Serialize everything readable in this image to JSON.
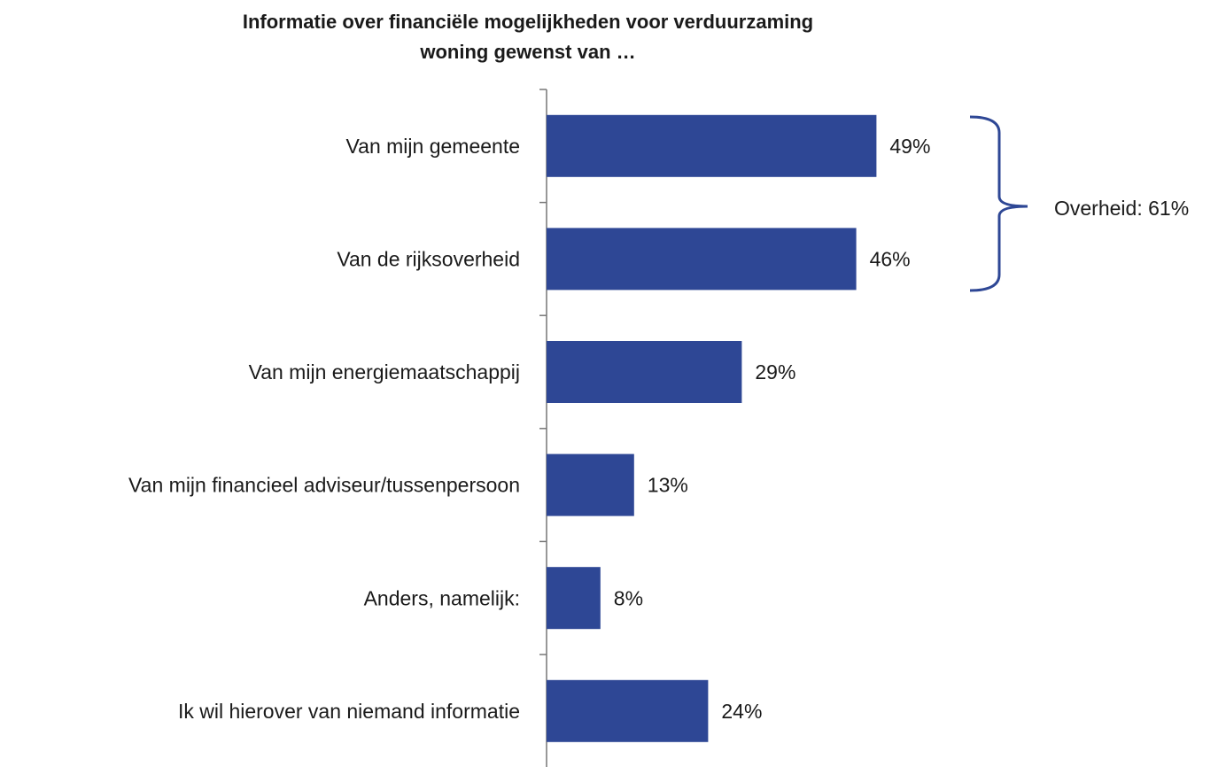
{
  "chart_data": {
    "type": "bar",
    "orientation": "horizontal",
    "title": [
      "Informatie over financiële mogelijkheden voor verduurzaming",
      "woning gewenst van …"
    ],
    "categories": [
      "Van mijn gemeente",
      "Van de rijksoverheid",
      "Van mijn energiemaatschappij",
      "Van mijn financieel adviseur/tussenpersoon",
      "Anders, namelijk:",
      "Ik wil hierover van niemand informatie"
    ],
    "values": [
      49,
      46,
      29,
      13,
      8,
      24
    ],
    "value_labels": [
      "49%",
      "46%",
      "29%",
      "13%",
      "8%",
      "24%"
    ],
    "color": "#2e4795",
    "xlim": [
      0,
      100
    ],
    "annotation": "Overheid: 61%"
  }
}
